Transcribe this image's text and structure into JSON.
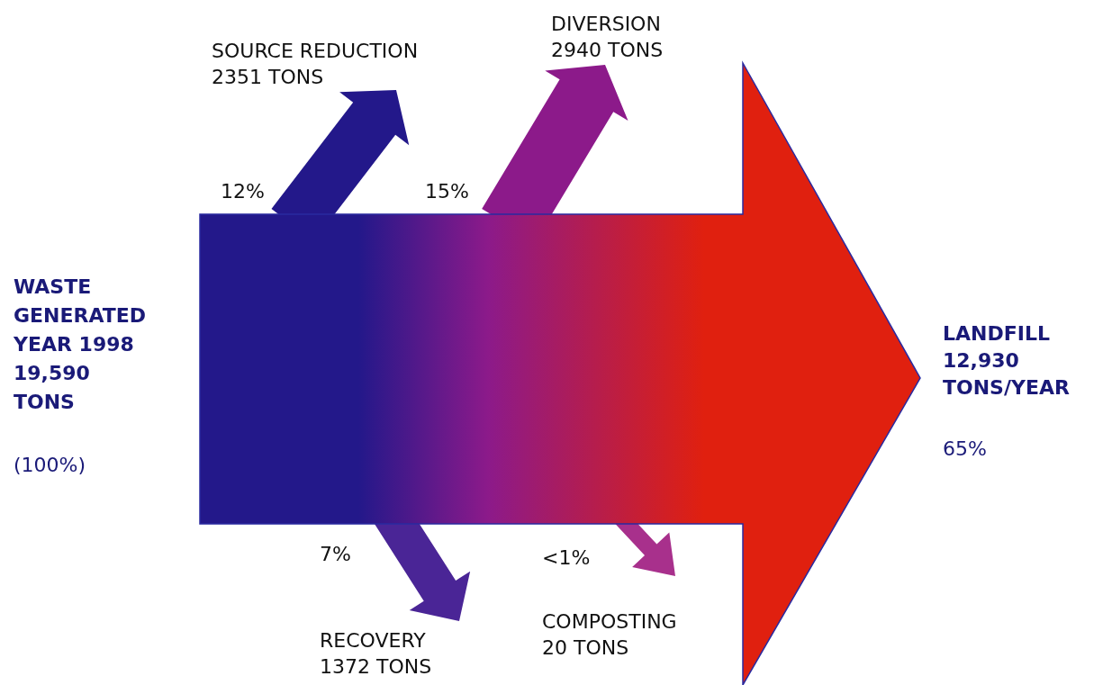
{
  "chart_data": {
    "type": "other",
    "categories": [
      "SOURCE REDUCTION",
      "DIVERSION",
      "RECOVERY",
      "COMPOSTING",
      "LANDFILL"
    ],
    "values": [
      2351,
      2940,
      1372,
      20,
      12930
    ],
    "value_labels": [
      "2351 TONS",
      "2940 TONS",
      "1372 TONS",
      "20 TONS",
      "12,930\nTONS/YEAR"
    ],
    "colors": [
      "#23188a",
      "#8c1a8a",
      "#4a2596",
      "#a8308c",
      "#e0200f"
    ],
    "annotations": [
      "WASTE\nGENERATED\nYEAR 1998\n19,590\nTONS",
      "(100%)",
      "12%",
      "15%",
      "7%",
      "<1%",
      "65%"
    ]
  }
}
